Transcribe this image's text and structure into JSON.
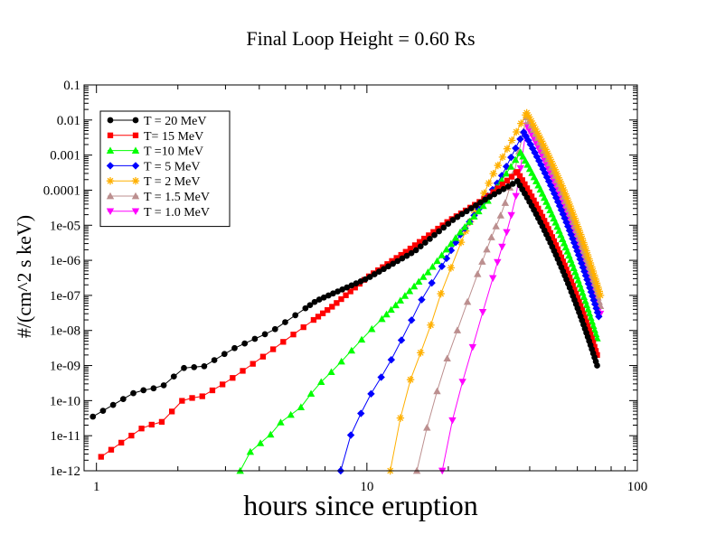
{
  "chart_data": {
    "type": "line",
    "title": "Final Loop Height = 0.60 Rs",
    "xlabel": "hours since eruption",
    "ylabel": "#/(cm^2 s keV)",
    "xscale": "log",
    "yscale": "log",
    "xlim": [
      0.9,
      100
    ],
    "ylim": [
      1e-12,
      0.1
    ],
    "xticks": [
      {
        "value": 1,
        "label": "1"
      },
      {
        "value": 10,
        "label": "10"
      },
      {
        "value": 100,
        "label": "100"
      }
    ],
    "yticks": [
      {
        "value": 0.1,
        "label": "0.1"
      },
      {
        "value": 0.01,
        "label": "0.01"
      },
      {
        "value": 0.001,
        "label": "0.001"
      },
      {
        "value": 0.0001,
        "label": "0.0001"
      },
      {
        "value": 1e-05,
        "label": "1e-05"
      },
      {
        "value": 1e-06,
        "label": "1e-06"
      },
      {
        "value": 1e-07,
        "label": "1e-07"
      },
      {
        "value": 1e-08,
        "label": "1e-08"
      },
      {
        "value": 1e-09,
        "label": "1e-09"
      },
      {
        "value": 1e-10,
        "label": "1e-10"
      },
      {
        "value": 1e-11,
        "label": "1e-11"
      },
      {
        "value": 1e-12,
        "label": "1e-12"
      }
    ],
    "legend_position": "top-left",
    "series": [
      {
        "name": "T = 20 MeV",
        "color": "#000000",
        "marker": "circle",
        "tmax": 36,
        "peak": 0.00018,
        "rise": [
          [
            0.97,
            3.5e-11
          ],
          [
            1.4,
            1.8e-10
          ],
          [
            1.75,
            2.5e-10
          ],
          [
            2.1,
            8.5e-10
          ],
          [
            2.5,
            9.5e-10
          ],
          [
            3.2,
            3e-09
          ],
          [
            4.5,
            1e-08
          ],
          [
            6.5,
            7e-08
          ],
          [
            10,
            3e-07
          ],
          [
            15,
            1.8e-06
          ],
          [
            21,
            1.5e-05
          ],
          [
            28,
            6e-05
          ],
          [
            36,
            0.00018
          ]
        ],
        "decay": [
          [
            36,
            0.00018
          ],
          [
            71,
            1e-09
          ]
        ]
      },
      {
        "name": "T= 15 MeV",
        "color": "#ff0000",
        "marker": "square",
        "tmax": 36,
        "peak": 0.00033,
        "rise": [
          [
            1.04,
            2.5e-12
          ],
          [
            1.5,
            1.8e-11
          ],
          [
            1.75,
            2.5e-11
          ],
          [
            2.1,
            1.1e-10
          ],
          [
            2.45,
            1.3e-10
          ],
          [
            3.05,
            3.5e-10
          ],
          [
            4,
            1.5e-09
          ],
          [
            5.5,
            9e-09
          ],
          [
            7.5,
            5e-08
          ],
          [
            10,
            3.2e-07
          ],
          [
            14,
            1.8e-06
          ],
          [
            20,
            1.3e-05
          ],
          [
            28,
            6.5e-05
          ],
          [
            36,
            0.00033
          ]
        ],
        "decay": [
          [
            36,
            0.00033
          ],
          [
            71,
            2e-09
          ]
        ]
      },
      {
        "name": "T =10 MeV",
        "color": "#00ff00",
        "marker": "triangle-up",
        "tmax": 37,
        "peak": 0.0012,
        "rise": [
          [
            3.4,
            1e-12
          ],
          [
            3.8,
            5e-12
          ],
          [
            4.2,
            7e-12
          ],
          [
            5,
            3.5e-11
          ],
          [
            5.5,
            4.5e-11
          ],
          [
            6.5,
            2.5e-10
          ],
          [
            7.7,
            9e-10
          ],
          [
            10,
            8e-09
          ],
          [
            13,
            6e-08
          ],
          [
            17,
            5e-07
          ],
          [
            22,
            6e-06
          ],
          [
            28,
            5e-05
          ],
          [
            37,
            0.0012
          ]
        ],
        "decay": [
          [
            37,
            0.0012
          ],
          [
            71,
            6e-09
          ]
        ]
      },
      {
        "name": "T = 5 MeV",
        "color": "#0000ff",
        "marker": "diamond",
        "tmax": 38,
        "peak": 0.0045,
        "rise": [
          [
            8,
            1e-12
          ],
          [
            8.7,
            1e-11
          ],
          [
            10,
            1e-10
          ],
          [
            12,
            1e-09
          ],
          [
            14,
            1e-08
          ],
          [
            16,
            8e-08
          ],
          [
            19,
            7e-07
          ],
          [
            22,
            5e-06
          ],
          [
            26,
            3e-05
          ],
          [
            31,
            0.0002
          ],
          [
            38,
            0.0045
          ]
        ],
        "decay": [
          [
            38,
            0.0045
          ],
          [
            72,
            2.5e-08
          ]
        ]
      },
      {
        "name": "T = 2 MeV",
        "color": "#ffb000",
        "marker": "star",
        "tmax": 39,
        "peak": 0.016,
        "rise": [
          [
            12.2,
            1e-12
          ],
          [
            12.5,
            5e-12
          ],
          [
            13.5,
            5e-11
          ],
          [
            14.5,
            4e-10
          ],
          [
            16,
            3e-09
          ],
          [
            17.5,
            2e-08
          ],
          [
            19,
            1.5e-07
          ],
          [
            21,
            1e-06
          ],
          [
            23,
            6e-06
          ],
          [
            26,
            4e-05
          ],
          [
            29,
            0.00025
          ],
          [
            33,
            0.0015
          ],
          [
            39,
            0.016
          ]
        ],
        "decay": [
          [
            39,
            0.016
          ],
          [
            73,
            1e-07
          ]
        ]
      },
      {
        "name": "T = 1.5 MeV",
        "color": "#bc8f8f",
        "marker": "triangle-up",
        "tmax": 39,
        "peak": 0.012,
        "rise": [
          [
            15.3,
            1e-12
          ],
          [
            16,
            5e-12
          ],
          [
            17,
            3e-11
          ],
          [
            18.5,
            3e-10
          ],
          [
            20,
            2e-09
          ],
          [
            22,
            1.5e-08
          ],
          [
            24,
            1e-07
          ],
          [
            26.5,
            8e-07
          ],
          [
            29,
            5e-06
          ],
          [
            32,
            3e-05
          ],
          [
            35,
            0.0003
          ],
          [
            39,
            0.012
          ]
        ],
        "decay": [
          [
            39,
            0.012
          ],
          [
            73,
            5e-08
          ]
        ]
      },
      {
        "name": "T = 1.0 MeV",
        "color": "#ff00ff",
        "marker": "triangle-down",
        "tmax": 39,
        "peak": 0.007,
        "rise": [
          [
            19,
            1e-12
          ],
          [
            20,
            1e-11
          ],
          [
            21.5,
            8e-11
          ],
          [
            23,
            6e-10
          ],
          [
            25,
            5e-09
          ],
          [
            27,
            4e-08
          ],
          [
            29,
            2.5e-07
          ],
          [
            31,
            1.5e-06
          ],
          [
            33.5,
            1e-05
          ],
          [
            36,
            0.0001
          ],
          [
            39,
            0.007
          ]
        ],
        "decay": [
          [
            39,
            0.007
          ],
          [
            73,
            3e-08
          ]
        ]
      }
    ]
  }
}
